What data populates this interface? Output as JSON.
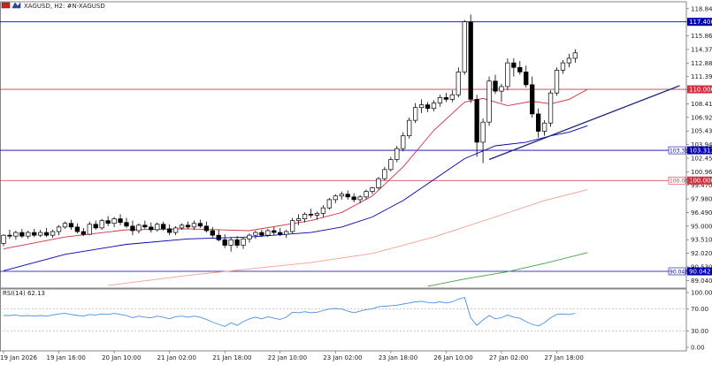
{
  "header": {
    "symbol_text": "XAGUSD, H2:  #N-XAGUSD"
  },
  "colors": {
    "bull_fill": "#ffffff",
    "bear_fill": "#000000",
    "candle_stroke": "#000000",
    "ma_red": "#e03030",
    "ma_blue": "#5050c0",
    "ma_salmon": "#f4a090",
    "ma_green": "#40a040",
    "rsi_line": "#4a90e2",
    "hline_blue": "#0000b0",
    "hline_red": "#d03040",
    "trendline": "#1a237e",
    "grid": "#c8c8c8"
  },
  "chart_data": {
    "type": "candlestick",
    "price_axis": {
      "ylim": [
        88.2,
        119.6
      ],
      "ticks": [
        "118.840",
        "117.400",
        "115.860",
        "114.370",
        "112.880",
        "111.390",
        "110.000",
        "108.410",
        "106.920",
        "105.430",
        "103.940",
        "102.450",
        "100.960",
        "99.470",
        "97.980",
        "96.490",
        "95.000",
        "93.510",
        "92.020",
        "90.530",
        "89.040"
      ]
    },
    "time_labels": [
      {
        "i": 0,
        "label": "19 Jan 2026"
      },
      {
        "i": 9,
        "label": "19 Jan 16:00"
      },
      {
        "i": 18,
        "label": "20 Jan 10:00"
      },
      {
        "i": 27,
        "label": "21 Jan 02:00"
      },
      {
        "i": 36,
        "label": "21 Jan 18:00"
      },
      {
        "i": 45,
        "label": "22 Jan 10:00"
      },
      {
        "i": 54,
        "label": "23 Jan 02:00"
      },
      {
        "i": 63,
        "label": "23 Jan 18:00"
      },
      {
        "i": 72,
        "label": "26 Jan 10:00"
      },
      {
        "i": 81,
        "label": "27 Jan 02:00"
      },
      {
        "i": 90,
        "label": "27 Jan 18:00"
      }
    ],
    "candles": [
      [
        93.1,
        94.1,
        92.8,
        94.0
      ],
      [
        94.0,
        94.6,
        93.6,
        93.9
      ],
      [
        93.9,
        94.5,
        93.5,
        94.3
      ],
      [
        94.3,
        94.7,
        93.7,
        93.9
      ],
      [
        93.9,
        94.5,
        93.6,
        94.3
      ],
      [
        94.3,
        94.7,
        93.8,
        94.0
      ],
      [
        94.0,
        94.6,
        93.8,
        94.3
      ],
      [
        94.3,
        94.8,
        93.8,
        94.0
      ],
      [
        94.0,
        94.6,
        93.7,
        94.4
      ],
      [
        94.4,
        95.1,
        94.0,
        94.9
      ],
      [
        94.9,
        95.5,
        94.7,
        95.3
      ],
      [
        95.3,
        95.7,
        94.6,
        94.9
      ],
      [
        94.9,
        95.3,
        94.2,
        94.4
      ],
      [
        94.4,
        94.8,
        93.9,
        94.1
      ],
      [
        94.1,
        95.5,
        94.0,
        95.2
      ],
      [
        95.2,
        95.6,
        94.6,
        94.8
      ],
      [
        94.8,
        95.8,
        94.6,
        95.6
      ],
      [
        95.6,
        96.1,
        95.0,
        95.3
      ],
      [
        95.3,
        96.0,
        94.9,
        95.8
      ],
      [
        95.8,
        96.3,
        95.1,
        95.4
      ],
      [
        95.4,
        95.9,
        94.8,
        95.0
      ],
      [
        95.0,
        95.6,
        94.0,
        94.5
      ],
      [
        94.5,
        95.3,
        94.2,
        95.1
      ],
      [
        95.1,
        95.6,
        94.7,
        94.9
      ],
      [
        94.9,
        95.4,
        94.3,
        94.6
      ],
      [
        94.6,
        95.4,
        94.4,
        95.2
      ],
      [
        95.2,
        95.5,
        94.5,
        94.7
      ],
      [
        94.7,
        95.2,
        94.0,
        94.3
      ],
      [
        94.3,
        95.0,
        94.0,
        94.8
      ],
      [
        94.8,
        95.3,
        94.6,
        95.1
      ],
      [
        95.1,
        95.5,
        94.7,
        94.9
      ],
      [
        94.9,
        95.6,
        94.6,
        95.3
      ],
      [
        95.3,
        95.7,
        94.8,
        95.0
      ],
      [
        95.0,
        95.5,
        94.3,
        94.5
      ],
      [
        94.5,
        94.9,
        93.7,
        94.0
      ],
      [
        94.0,
        94.6,
        93.3,
        93.5
      ],
      [
        93.5,
        94.1,
        92.6,
        92.9
      ],
      [
        92.9,
        93.8,
        92.2,
        93.5
      ],
      [
        93.5,
        93.9,
        92.6,
        92.9
      ],
      [
        92.9,
        93.8,
        92.5,
        93.6
      ],
      [
        93.6,
        94.2,
        93.2,
        94.0
      ],
      [
        94.0,
        94.5,
        93.6,
        94.3
      ],
      [
        94.3,
        94.6,
        93.8,
        94.0
      ],
      [
        94.0,
        94.7,
        93.8,
        94.5
      ],
      [
        94.5,
        94.9,
        94.0,
        94.3
      ],
      [
        94.3,
        94.8,
        93.9,
        94.1
      ],
      [
        94.1,
        94.6,
        93.7,
        94.4
      ],
      [
        94.4,
        95.9,
        94.2,
        95.6
      ],
      [
        95.6,
        96.3,
        95.1,
        95.8
      ],
      [
        95.8,
        96.5,
        95.4,
        96.3
      ],
      [
        96.3,
        96.9,
        95.9,
        96.2
      ],
      [
        96.2,
        96.6,
        95.7,
        96.4
      ],
      [
        96.4,
        97.3,
        96.0,
        97.0
      ],
      [
        97.0,
        98.1,
        96.8,
        97.9
      ],
      [
        97.9,
        98.5,
        97.5,
        98.3
      ],
      [
        98.3,
        98.8,
        97.9,
        98.5
      ],
      [
        98.5,
        98.9,
        97.9,
        98.2
      ],
      [
        98.2,
        98.6,
        97.6,
        97.9
      ],
      [
        97.9,
        98.4,
        97.5,
        98.2
      ],
      [
        98.2,
        99.0,
        97.9,
        98.8
      ],
      [
        98.8,
        99.3,
        98.5,
        99.2
      ],
      [
        99.2,
        100.4,
        99.0,
        100.2
      ],
      [
        100.2,
        101.5,
        100.0,
        101.2
      ],
      [
        101.2,
        102.6,
        101.0,
        102.3
      ],
      [
        102.3,
        103.8,
        102.0,
        103.5
      ],
      [
        103.5,
        105.3,
        103.2,
        104.9
      ],
      [
        104.9,
        106.9,
        104.6,
        106.6
      ],
      [
        106.6,
        108.5,
        106.3,
        108.0
      ],
      [
        108.0,
        108.9,
        107.4,
        108.3
      ],
      [
        108.3,
        108.6,
        107.5,
        107.9
      ],
      [
        107.9,
        108.8,
        107.6,
        108.5
      ],
      [
        108.5,
        109.4,
        108.1,
        109.1
      ],
      [
        109.1,
        109.6,
        108.6,
        108.9
      ],
      [
        108.9,
        109.9,
        108.6,
        109.4
      ],
      [
        109.4,
        112.4,
        109.1,
        111.9
      ],
      [
        111.9,
        117.6,
        111.6,
        117.4
      ],
      [
        117.4,
        118.2,
        108.5,
        108.9
      ],
      [
        108.9,
        109.4,
        102.6,
        104.2
      ],
      [
        104.2,
        106.8,
        101.9,
        106.4
      ],
      [
        106.4,
        111.4,
        106.0,
        110.9
      ],
      [
        110.9,
        111.6,
        109.5,
        109.8
      ],
      [
        109.8,
        110.6,
        108.6,
        110.3
      ],
      [
        110.3,
        113.4,
        109.9,
        112.9
      ],
      [
        112.9,
        113.4,
        111.4,
        112.4
      ],
      [
        112.4,
        113.1,
        111.6,
        111.9
      ],
      [
        111.9,
        112.6,
        110.2,
        110.5
      ],
      [
        110.5,
        111.4,
        106.9,
        107.3
      ],
      [
        107.3,
        107.9,
        104.7,
        105.4
      ],
      [
        105.4,
        106.6,
        104.9,
        106.3
      ],
      [
        106.3,
        109.9,
        105.9,
        109.6
      ],
      [
        109.6,
        112.4,
        109.3,
        112.1
      ],
      [
        112.1,
        113.2,
        111.7,
        112.9
      ],
      [
        112.9,
        113.9,
        112.4,
        113.4
      ],
      [
        113.4,
        114.4,
        112.9,
        114.0
      ]
    ],
    "rsi": {
      "label": "RSI(14) 62.13",
      "ylim": [
        0,
        100
      ],
      "ticks": [
        "100.00",
        "70.00",
        "30.00",
        "0.00"
      ],
      "values": [
        58,
        58,
        59,
        57,
        58,
        57,
        58,
        57,
        59,
        61,
        62,
        60,
        58,
        57,
        60,
        59,
        61,
        60,
        62,
        60,
        58,
        54,
        57,
        55,
        54,
        57,
        55,
        52,
        56,
        57,
        55,
        57,
        55,
        51,
        46,
        42,
        38,
        45,
        40,
        47,
        52,
        55,
        52,
        56,
        53,
        51,
        55,
        64,
        63,
        65,
        63,
        64,
        67,
        70,
        71,
        70,
        66,
        63,
        66,
        69,
        70,
        74,
        75,
        76,
        77,
        79,
        81,
        83,
        84,
        82,
        81,
        83,
        81,
        83,
        88,
        91,
        54,
        40,
        50,
        58,
        52,
        54,
        59,
        55,
        53,
        47,
        42,
        39,
        45,
        54,
        60,
        61,
        60,
        62
      ]
    },
    "horizontal_lines": [
      {
        "price": 117.4,
        "color": "blue"
      },
      {
        "price": 110.0,
        "color": "red"
      },
      {
        "price": 103.311,
        "color": "blue",
        "label": "103.311"
      },
      {
        "price": 100.0,
        "color": "red",
        "label": "100.000"
      },
      {
        "price": 90.042,
        "color": "blue",
        "label": "90.042"
      }
    ],
    "price_tags": [
      {
        "price": 117.4,
        "label": "117.400",
        "color": "blue"
      },
      {
        "price": 110.0,
        "label": "110.000",
        "color": "red"
      },
      {
        "price": 103.311,
        "label": "103.311",
        "color": "blue"
      },
      {
        "price": 100.0,
        "label": "100.000",
        "color": "red"
      },
      {
        "price": 90.042,
        "label": "90.042",
        "color": "blue"
      }
    ],
    "trendline": {
      "from": {
        "i": 79,
        "price": 102.3
      },
      "to": {
        "i": 110,
        "price": 110.4
      }
    },
    "moving_averages": [
      {
        "color": "red",
        "points": [
          [
            0,
            92.5
          ],
          [
            10,
            93.8
          ],
          [
            20,
            94.6
          ],
          [
            30,
            94.7
          ],
          [
            40,
            94.5
          ],
          [
            50,
            95.6
          ],
          [
            55,
            96.5
          ],
          [
            60,
            98.3
          ],
          [
            65,
            101.5
          ],
          [
            70,
            105.5
          ],
          [
            75,
            108.6
          ],
          [
            78,
            109.0
          ],
          [
            82,
            108.2
          ],
          [
            86,
            108.7
          ],
          [
            89,
            108.4
          ],
          [
            92,
            108.9
          ],
          [
            95,
            110.0
          ]
        ]
      },
      {
        "color": "blue",
        "points": [
          [
            0,
            90.1
          ],
          [
            10,
            91.9
          ],
          [
            20,
            93.0
          ],
          [
            30,
            93.6
          ],
          [
            40,
            93.8
          ],
          [
            50,
            94.3
          ],
          [
            55,
            94.9
          ],
          [
            60,
            96.0
          ],
          [
            65,
            97.8
          ],
          [
            70,
            100.1
          ],
          [
            75,
            102.4
          ],
          [
            80,
            103.8
          ],
          [
            85,
            104.2
          ],
          [
            89,
            104.9
          ],
          [
            92,
            105.3
          ],
          [
            95,
            106.0
          ]
        ]
      },
      {
        "color": "salmon",
        "points": [
          [
            17,
            88.5
          ],
          [
            30,
            89.6
          ],
          [
            40,
            90.3
          ],
          [
            50,
            91.0
          ],
          [
            60,
            92.0
          ],
          [
            70,
            93.8
          ],
          [
            80,
            96.0
          ],
          [
            88,
            97.8
          ],
          [
            95,
            99.0
          ]
        ]
      },
      {
        "color": "green",
        "points": [
          [
            69,
            88.4
          ],
          [
            75,
            89.2
          ],
          [
            82,
            90.0
          ],
          [
            88,
            90.9
          ],
          [
            95,
            92.1
          ]
        ]
      }
    ]
  }
}
